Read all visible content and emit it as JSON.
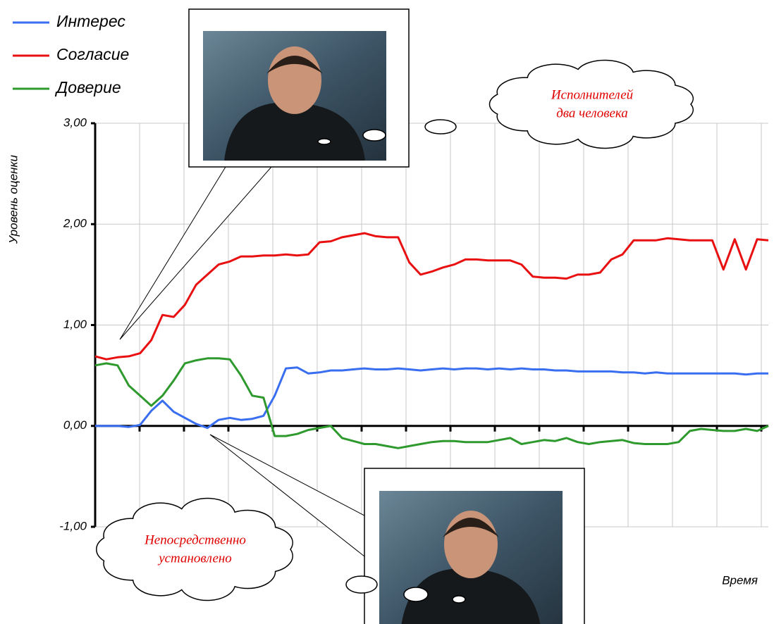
{
  "chart_data": {
    "type": "line",
    "y_label": "Уровень оценки",
    "x_label": "Время",
    "ylim": [
      -1,
      3
    ],
    "yticks": [
      {
        "value": -1,
        "label": "-1,00"
      },
      {
        "value": 0,
        "label": "0,00"
      },
      {
        "value": 1,
        "label": "1,00"
      },
      {
        "value": 2,
        "label": "2,00"
      },
      {
        "value": 3,
        "label": "3,00"
      }
    ],
    "grid": true,
    "series": [
      {
        "name": "Интерес",
        "color": "#3a6ef0",
        "values": [
          0,
          0,
          0,
          -0.01,
          0.01,
          0.15,
          0.25,
          0.14,
          0.08,
          0.02,
          -0.02,
          0.06,
          0.08,
          0.06,
          0.07,
          0.1,
          0.3,
          0.57,
          0.58,
          0.52,
          0.53,
          0.55,
          0.55,
          0.56,
          0.57,
          0.56,
          0.56,
          0.57,
          0.56,
          0.55,
          0.56,
          0.57,
          0.56,
          0.57,
          0.57,
          0.56,
          0.57,
          0.56,
          0.57,
          0.56,
          0.56,
          0.55,
          0.55,
          0.54,
          0.54,
          0.54,
          0.54,
          0.53,
          0.53,
          0.52,
          0.53,
          0.52,
          0.52,
          0.52,
          0.52,
          0.52,
          0.52,
          0.52,
          0.51,
          0.52,
          0.52
        ]
      },
      {
        "name": "Согласие",
        "color": "#e81010",
        "values": [
          0.69,
          0.66,
          0.68,
          0.69,
          0.72,
          0.85,
          1.1,
          1.08,
          1.2,
          1.4,
          1.5,
          1.6,
          1.63,
          1.68,
          1.68,
          1.69,
          1.69,
          1.7,
          1.69,
          1.7,
          1.82,
          1.83,
          1.87,
          1.89,
          1.91,
          1.88,
          1.87,
          1.87,
          1.62,
          1.5,
          1.53,
          1.57,
          1.6,
          1.65,
          1.65,
          1.64,
          1.64,
          1.64,
          1.6,
          1.48,
          1.47,
          1.47,
          1.46,
          1.5,
          1.5,
          1.52,
          1.65,
          1.7,
          1.84,
          1.84,
          1.84,
          1.86,
          1.85,
          1.84,
          1.84,
          1.84,
          1.55,
          1.85,
          1.55,
          1.85,
          1.84
        ]
      },
      {
        "name": "Доверие",
        "color": "#2e9a2e",
        "values": [
          0.6,
          0.62,
          0.6,
          0.4,
          0.3,
          0.2,
          0.3,
          0.45,
          0.62,
          0.65,
          0.67,
          0.67,
          0.66,
          0.5,
          0.3,
          0.28,
          -0.1,
          -0.1,
          -0.08,
          -0.04,
          -0.02,
          0,
          -0.12,
          -0.15,
          -0.18,
          -0.18,
          -0.2,
          -0.22,
          -0.2,
          -0.18,
          -0.16,
          -0.15,
          -0.15,
          -0.16,
          -0.16,
          -0.16,
          -0.14,
          -0.12,
          -0.18,
          -0.16,
          -0.14,
          -0.15,
          -0.12,
          -0.16,
          -0.18,
          -0.16,
          -0.15,
          -0.14,
          -0.17,
          -0.18,
          -0.18,
          -0.18,
          -0.16,
          -0.05,
          -0.03,
          -0.04,
          -0.05,
          -0.05,
          -0.03,
          -0.05,
          0
        ]
      }
    ],
    "annotations": [
      [
        "Исполнителей",
        "два человека"
      ],
      [
        "Непосредственно",
        "установлено"
      ]
    ]
  }
}
